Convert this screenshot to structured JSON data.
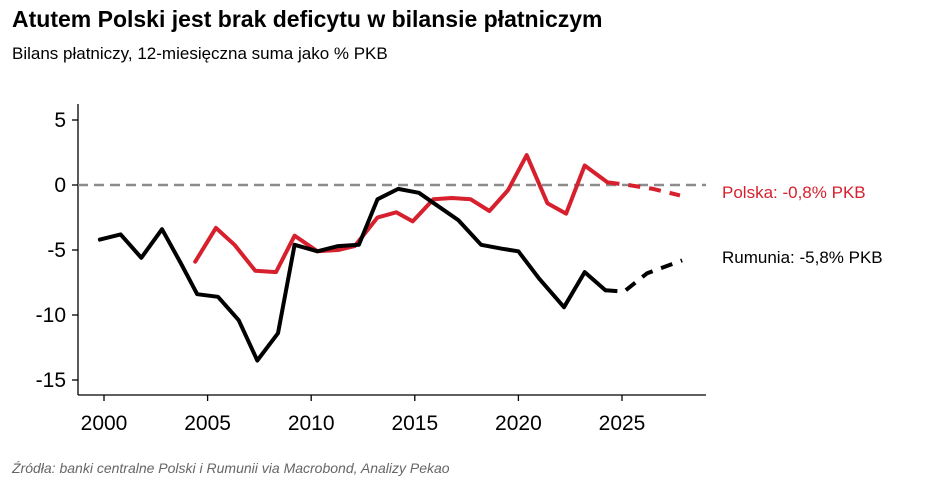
{
  "chart_data": {
    "type": "line",
    "title": "Atutem Polski jest brak deficytu w bilansie płatniczym",
    "subtitle": "Bilans płatniczy, 12-miesięczna suma jako % PKB",
    "source": "Źródła: banki centralne Polski i Rumunii via Macrobond, Analizy Pekao",
    "xlim": [
      1999.5,
      2029
    ],
    "ylim": [
      -16,
      6
    ],
    "y_ticks": [
      5,
      0,
      -5,
      -10,
      -15
    ],
    "y_tick_labels": [
      "5",
      "0",
      "-5",
      "-10",
      "-15"
    ],
    "x_ticks": [
      2000,
      2005,
      2010,
      2015,
      2020,
      2025
    ],
    "x_tick_labels": [
      "2000",
      "2005",
      "2010",
      "2015",
      "2020",
      "2025"
    ],
    "reference_line": 0,
    "series": [
      {
        "name": "Polska",
        "color": "#d7202e",
        "label": "Polska: -0,8% PKB",
        "values": [
          [
            2004.4,
            -5.9
          ],
          [
            2005.4,
            -3.3
          ],
          [
            2006.3,
            -4.6
          ],
          [
            2007.3,
            -6.6
          ],
          [
            2008.3,
            -6.7
          ],
          [
            2009.2,
            -3.9
          ],
          [
            2010.3,
            -5.1
          ],
          [
            2011.3,
            -5.0
          ],
          [
            2012.1,
            -4.7
          ],
          [
            2013.2,
            -2.5
          ],
          [
            2014.1,
            -2.1
          ],
          [
            2014.9,
            -2.8
          ],
          [
            2015.9,
            -1.1
          ],
          [
            2016.8,
            -1.0
          ],
          [
            2017.7,
            -1.1
          ],
          [
            2018.6,
            -2.0
          ],
          [
            2019.5,
            -0.4
          ],
          [
            2020.4,
            2.3
          ],
          [
            2021.4,
            -1.4
          ],
          [
            2022.3,
            -2.2
          ],
          [
            2023.2,
            1.5
          ],
          [
            2024.3,
            0.2
          ]
        ],
        "forecast": [
          [
            2024.3,
            0.2
          ],
          [
            2025.3,
            0.0
          ],
          [
            2026.5,
            -0.3
          ],
          [
            2027.8,
            -0.8
          ]
        ]
      },
      {
        "name": "Rumunia",
        "color": "#000000",
        "label": "Rumunia: -5,8% PKB",
        "values": [
          [
            1999.8,
            -4.2
          ],
          [
            2000.8,
            -3.8
          ],
          [
            2001.8,
            -5.6
          ],
          [
            2002.8,
            -3.4
          ],
          [
            2003.7,
            -6.0
          ],
          [
            2004.5,
            -8.4
          ],
          [
            2005.5,
            -8.6
          ],
          [
            2006.5,
            -10.4
          ],
          [
            2007.4,
            -13.5
          ],
          [
            2008.4,
            -11.4
          ],
          [
            2009.2,
            -4.6
          ],
          [
            2010.3,
            -5.1
          ],
          [
            2011.3,
            -4.7
          ],
          [
            2012.3,
            -4.6
          ],
          [
            2013.2,
            -1.1
          ],
          [
            2014.2,
            -0.3
          ],
          [
            2015.2,
            -0.6
          ],
          [
            2016.1,
            -1.6
          ],
          [
            2017.1,
            -2.7
          ],
          [
            2018.2,
            -4.6
          ],
          [
            2019.2,
            -4.9
          ],
          [
            2020.0,
            -5.1
          ],
          [
            2021.0,
            -7.2
          ],
          [
            2022.2,
            -9.4
          ],
          [
            2023.2,
            -6.7
          ],
          [
            2024.2,
            -8.1
          ]
        ],
        "forecast": [
          [
            2024.2,
            -8.1
          ],
          [
            2025.1,
            -8.2
          ],
          [
            2026.2,
            -6.8
          ],
          [
            2027.9,
            -5.8
          ]
        ]
      }
    ]
  }
}
